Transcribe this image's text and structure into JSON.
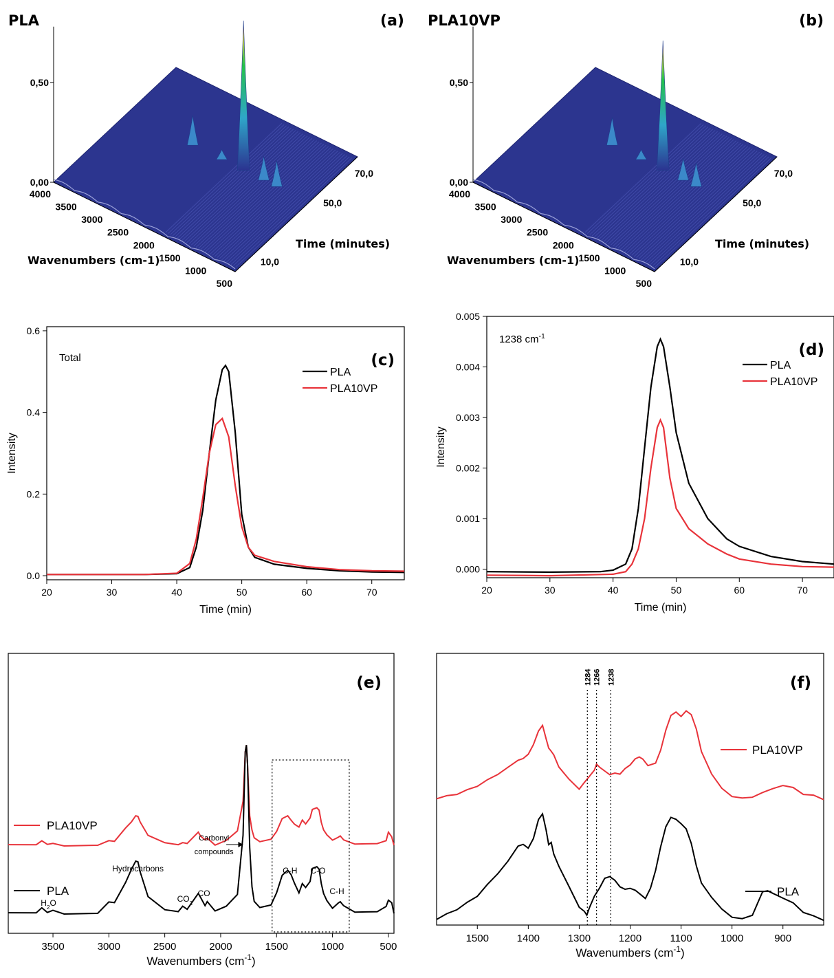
{
  "chart_data": [
    {
      "id": "a",
      "type": "surface3d",
      "panel_label": "(a)",
      "title": "PLA",
      "z_ticks": [
        "0,00",
        "0,50"
      ],
      "x_ticks": [
        "4000",
        "3500",
        "3000",
        "2500",
        "2000",
        "1500",
        "1000",
        "500"
      ],
      "x_label": "Wavenumbers (cm-1)",
      "y_ticks": [
        "10,0",
        "50,0",
        "70,0"
      ],
      "y_label": "Time (minutes)",
      "peaks": [
        {
          "wavenumber": 1760,
          "height": 0.75
        },
        {
          "wavenumber": 2740,
          "height": 0.15
        },
        {
          "wavenumber": 1370,
          "height": 0.12
        },
        {
          "wavenumber": 1120,
          "height": 0.13
        },
        {
          "wavenumber": 2180,
          "height": 0.05
        }
      ]
    },
    {
      "id": "b",
      "type": "surface3d",
      "panel_label": "(b)",
      "title": "PLA10VP",
      "z_ticks": [
        "0,00",
        "0,50"
      ],
      "x_ticks": [
        "4000",
        "3500",
        "3000",
        "2500",
        "2000",
        "1500",
        "1000",
        "500"
      ],
      "x_label": "Wavenumbers (cm-1)",
      "y_ticks": [
        "10,0",
        "50,0",
        "70,0"
      ],
      "y_label": "Time (minutes)",
      "peaks": [
        {
          "wavenumber": 1760,
          "height": 0.65
        },
        {
          "wavenumber": 2740,
          "height": 0.14
        },
        {
          "wavenumber": 1370,
          "height": 0.11
        },
        {
          "wavenumber": 1120,
          "height": 0.12
        },
        {
          "wavenumber": 2180,
          "height": 0.05
        }
      ]
    },
    {
      "id": "c",
      "type": "line",
      "panel_label": "(c)",
      "annotation": "Total",
      "xlabel": "Time (min)",
      "ylabel": "Intensity",
      "xlim": [
        20,
        75
      ],
      "ylim": [
        -0.01,
        0.61
      ],
      "xticks": [
        20,
        30,
        40,
        50,
        60,
        70
      ],
      "yticks": [
        "0.0",
        "0.2",
        "0.4",
        "0.6"
      ],
      "legend_position": "top-right",
      "series": [
        {
          "name": "PLA",
          "color": "#000000",
          "x": [
            20,
            35,
            40,
            42,
            43,
            44,
            45,
            46,
            47,
            47.5,
            48,
            49,
            50,
            51,
            52,
            55,
            60,
            65,
            70,
            75
          ],
          "y": [
            0.003,
            0.003,
            0.005,
            0.02,
            0.07,
            0.16,
            0.3,
            0.43,
            0.505,
            0.515,
            0.5,
            0.35,
            0.15,
            0.07,
            0.045,
            0.028,
            0.018,
            0.012,
            0.009,
            0.008
          ]
        },
        {
          "name": "PLA10VP",
          "color": "#e8333a",
          "x": [
            20,
            35,
            40,
            42,
            43,
            44,
            45,
            46,
            47,
            48,
            49,
            50,
            51,
            52,
            55,
            60,
            65,
            70,
            75
          ],
          "y": [
            0.003,
            0.003,
            0.006,
            0.03,
            0.09,
            0.19,
            0.3,
            0.37,
            0.385,
            0.34,
            0.22,
            0.12,
            0.07,
            0.05,
            0.035,
            0.022,
            0.015,
            0.012,
            0.011
          ]
        }
      ]
    },
    {
      "id": "d",
      "type": "line",
      "panel_label": "(d)",
      "annotation": "1238 cm",
      "annotation_sup": "-1",
      "xlabel": "Time (min)",
      "ylabel": "Intensity",
      "xlim": [
        20,
        75
      ],
      "ylim": [
        -0.00017,
        0.005
      ],
      "xticks": [
        20,
        30,
        40,
        50,
        60,
        70
      ],
      "yticks": [
        "0.000",
        "0.001",
        "0.002",
        "0.003",
        "0.004",
        "0.005"
      ],
      "legend_position": "top-right",
      "series": [
        {
          "name": "PLA",
          "color": "#000000",
          "x": [
            20,
            30,
            38,
            40,
            42,
            43,
            44,
            45,
            46,
            47,
            47.5,
            48,
            49,
            50,
            52,
            55,
            58,
            60,
            65,
            70,
            75
          ],
          "y": [
            -5e-05,
            -6e-05,
            -5e-05,
            -2e-05,
            0.0001,
            0.0004,
            0.0012,
            0.0024,
            0.0036,
            0.0044,
            0.00455,
            0.0044,
            0.0036,
            0.0027,
            0.0017,
            0.001,
            0.0006,
            0.00045,
            0.00025,
            0.00015,
            0.0001
          ]
        },
        {
          "name": "PLA10VP",
          "color": "#e8333a",
          "x": [
            20,
            30,
            40,
            42,
            43,
            44,
            45,
            46,
            47,
            47.5,
            48,
            49,
            50,
            52,
            55,
            58,
            60,
            65,
            70,
            75
          ],
          "y": [
            -0.00012,
            -0.00013,
            -0.0001,
            -5e-05,
            0.0001,
            0.0004,
            0.001,
            0.002,
            0.0028,
            0.00295,
            0.0028,
            0.0018,
            0.0012,
            0.0008,
            0.0005,
            0.0003,
            0.0002,
            0.0001,
            5e-05,
            4e-05
          ]
        }
      ]
    },
    {
      "id": "e",
      "type": "line",
      "panel_label": "(e)",
      "xlabel": "Wavenumbers (cm",
      "xlabel_sup": "-1",
      "xlabel_close": ")",
      "xlim": [
        3900,
        450
      ],
      "ylim": [
        0,
        1
      ],
      "xticks": [
        3500,
        3000,
        2500,
        2000,
        1500,
        1000,
        500
      ],
      "series": [
        {
          "name": "PLA10VP",
          "color": "#e8333a",
          "offset": 0.3,
          "x": [
            3900,
            3650,
            3600,
            3550,
            3500,
            3400,
            3100,
            3000,
            2950,
            2850,
            2800,
            2760,
            2740,
            2720,
            2650,
            2500,
            2380,
            2340,
            2300,
            2200,
            2180,
            2140,
            2120,
            2050,
            1950,
            1850,
            1800,
            1780,
            1770,
            1760,
            1740,
            1720,
            1700,
            1650,
            1550,
            1500,
            1450,
            1400,
            1370,
            1340,
            1300,
            1270,
            1240,
            1200,
            1180,
            1140,
            1120,
            1100,
            1080,
            1050,
            1000,
            950,
            930,
            900,
            800,
            700,
            600,
            520,
            500,
            470,
            450
          ],
          "y": [
            0.005,
            0.01,
            0.025,
            0.01,
            0.015,
            0.005,
            0.01,
            0.03,
            0.02,
            0.08,
            0.11,
            0.14,
            0.13,
            0.11,
            0.05,
            0.015,
            0.01,
            0.015,
            0.01,
            0.06,
            0.05,
            0.03,
            0.04,
            0.01,
            0.03,
            0.07,
            0.2,
            0.42,
            0.45,
            0.36,
            0.14,
            0.07,
            0.04,
            0.02,
            0.03,
            0.07,
            0.12,
            0.14,
            0.12,
            0.1,
            0.09,
            0.12,
            0.1,
            0.13,
            0.16,
            0.17,
            0.16,
            0.11,
            0.07,
            0.05,
            0.03,
            0.04,
            0.05,
            0.03,
            0.01,
            0.01,
            0.01,
            0.03,
            0.06,
            0.04,
            0.01
          ]
        },
        {
          "name": "PLA",
          "color": "#000000",
          "offset": 0.0,
          "x": [
            3900,
            3650,
            3600,
            3550,
            3500,
            3400,
            3100,
            3000,
            2950,
            2850,
            2800,
            2760,
            2740,
            2720,
            2650,
            2500,
            2380,
            2340,
            2300,
            2200,
            2180,
            2140,
            2120,
            2050,
            1950,
            1850,
            1800,
            1780,
            1770,
            1760,
            1740,
            1720,
            1700,
            1650,
            1550,
            1500,
            1450,
            1400,
            1370,
            1340,
            1300,
            1270,
            1240,
            1200,
            1180,
            1140,
            1120,
            1100,
            1080,
            1050,
            1000,
            950,
            930,
            900,
            800,
            700,
            600,
            520,
            500,
            470,
            450
          ],
          "y": [
            0.005,
            0.01,
            0.03,
            0.01,
            0.02,
            0.005,
            0.01,
            0.06,
            0.05,
            0.14,
            0.2,
            0.24,
            0.23,
            0.19,
            0.08,
            0.02,
            0.015,
            0.035,
            0.02,
            0.09,
            0.08,
            0.04,
            0.06,
            0.02,
            0.04,
            0.09,
            0.35,
            0.72,
            0.75,
            0.66,
            0.3,
            0.12,
            0.06,
            0.03,
            0.04,
            0.1,
            0.17,
            0.2,
            0.18,
            0.14,
            0.1,
            0.14,
            0.12,
            0.15,
            0.2,
            0.21,
            0.2,
            0.14,
            0.09,
            0.06,
            0.03,
            0.05,
            0.06,
            0.04,
            0.01,
            0.01,
            0.01,
            0.04,
            0.06,
            0.05,
            0.01
          ]
        }
      ],
      "annotations": {
        "h2o": "H",
        "h2o_sub": "2",
        "h2o_tail": "O",
        "hydrocarbons": "Hydrocarbons",
        "co2": "CO",
        "co2_sub": "2",
        "co": "CO",
        "carbonyl_line1": "Carbonyl",
        "carbonyl_line2": "compounds",
        "ch1": "C-H",
        "co_bond": "C-O",
        "ch2": "C-H"
      },
      "box_range": [
        1540,
        850
      ]
    },
    {
      "id": "f",
      "type": "line",
      "panel_label": "(f)",
      "xlabel": "Wavenumbers (cm",
      "xlabel_sup": "-1",
      "xlabel_close": ")",
      "xlim": [
        1580,
        820
      ],
      "ylim": [
        0,
        1
      ],
      "xticks": [
        1500,
        1400,
        1300,
        1200,
        1100,
        1000,
        900
      ],
      "reference_lines": [
        "1284",
        "1266",
        "1238"
      ],
      "reference_values": [
        1284,
        1266,
        1238
      ],
      "series": [
        {
          "name": "PLA10VP",
          "color": "#e8333a",
          "offset": 0.45,
          "x": [
            1580,
            1560,
            1540,
            1520,
            1500,
            1480,
            1460,
            1440,
            1420,
            1410,
            1400,
            1390,
            1380,
            1372,
            1365,
            1360,
            1355,
            1350,
            1340,
            1320,
            1300,
            1290,
            1280,
            1270,
            1266,
            1260,
            1250,
            1240,
            1230,
            1220,
            1210,
            1200,
            1190,
            1182,
            1175,
            1165,
            1150,
            1140,
            1130,
            1120,
            1110,
            1100,
            1090,
            1080,
            1070,
            1060,
            1040,
            1020,
            1000,
            980,
            960,
            940,
            920,
            900,
            880,
            860,
            840,
            820
          ],
          "y": [
            0.0,
            0.01,
            0.02,
            0.03,
            0.05,
            0.07,
            0.09,
            0.12,
            0.14,
            0.15,
            0.17,
            0.2,
            0.25,
            0.27,
            0.22,
            0.19,
            0.18,
            0.16,
            0.12,
            0.07,
            0.04,
            0.06,
            0.08,
            0.11,
            0.13,
            0.12,
            0.1,
            0.09,
            0.1,
            0.09,
            0.11,
            0.13,
            0.15,
            0.16,
            0.15,
            0.12,
            0.13,
            0.18,
            0.26,
            0.31,
            0.32,
            0.31,
            0.33,
            0.31,
            0.26,
            0.18,
            0.09,
            0.04,
            0.01,
            0.0,
            0.01,
            0.02,
            0.04,
            0.05,
            0.04,
            0.02,
            0.01,
            0.0
          ]
        },
        {
          "name": "PLA",
          "color": "#000000",
          "offset": 0.0,
          "x": [
            1580,
            1560,
            1540,
            1520,
            1500,
            1480,
            1460,
            1440,
            1420,
            1410,
            1400,
            1390,
            1380,
            1372,
            1365,
            1360,
            1355,
            1350,
            1340,
            1320,
            1300,
            1290,
            1285,
            1280,
            1270,
            1260,
            1250,
            1240,
            1230,
            1220,
            1210,
            1200,
            1190,
            1180,
            1170,
            1160,
            1150,
            1140,
            1130,
            1120,
            1110,
            1100,
            1090,
            1080,
            1070,
            1060,
            1040,
            1020,
            1000,
            980,
            960,
            940,
            930,
            920,
            900,
            880,
            860,
            840,
            820
          ],
          "y": [
            0.0,
            0.02,
            0.04,
            0.06,
            0.09,
            0.13,
            0.17,
            0.22,
            0.27,
            0.28,
            0.27,
            0.3,
            0.37,
            0.39,
            0.33,
            0.28,
            0.29,
            0.24,
            0.2,
            0.12,
            0.05,
            0.03,
            0.02,
            0.04,
            0.09,
            0.12,
            0.15,
            0.16,
            0.15,
            0.12,
            0.11,
            0.12,
            0.11,
            0.09,
            0.08,
            0.12,
            0.18,
            0.27,
            0.35,
            0.38,
            0.37,
            0.36,
            0.34,
            0.28,
            0.2,
            0.14,
            0.08,
            0.04,
            0.01,
            0.0,
            0.02,
            0.1,
            0.11,
            0.1,
            0.08,
            0.06,
            0.03,
            0.01,
            0.0
          ]
        }
      ]
    }
  ]
}
